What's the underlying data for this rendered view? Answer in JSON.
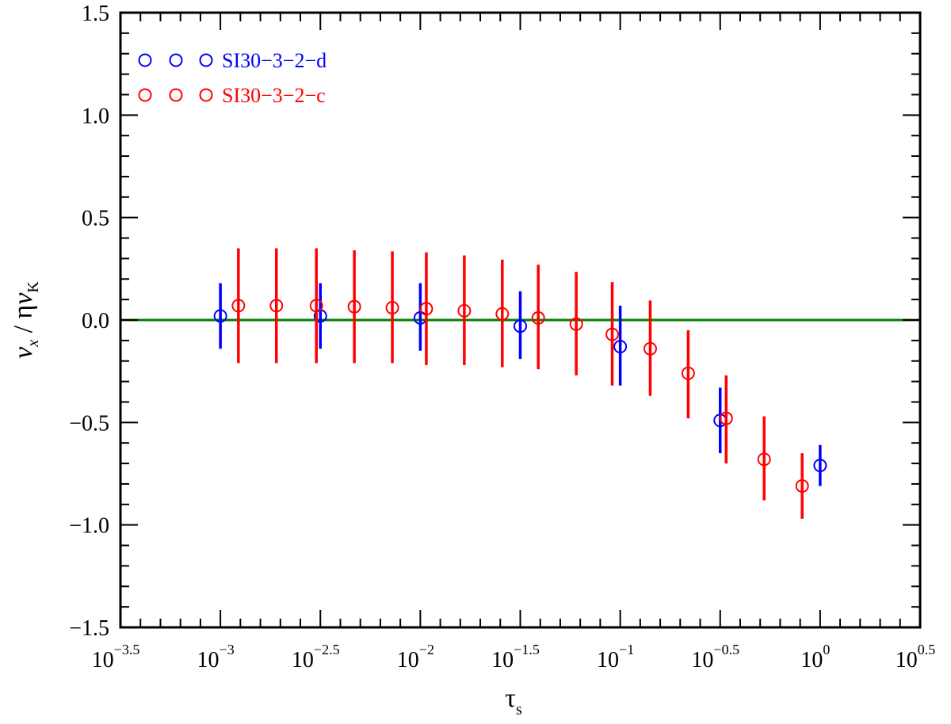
{
  "chart_data": {
    "type": "scatter",
    "title": "",
    "xlabel": "τ",
    "xlabel_sub": "s",
    "ylabel": {
      "v": "v",
      "v_sub": "x",
      "sep": " / η",
      "v2": "v",
      "v2_sub": "K"
    },
    "x_scale": "log10",
    "xlim_log10": [
      -3.5,
      0.5
    ],
    "ylim": [
      -1.5,
      1.5
    ],
    "x_ticks": [
      {
        "base": "10",
        "exp": "−3.5",
        "log10": -3.5
      },
      {
        "base": "10",
        "exp": "−3",
        "log10": -3.0
      },
      {
        "base": "10",
        "exp": "−2.5",
        "log10": -2.5
      },
      {
        "base": "10",
        "exp": "−2",
        "log10": -2.0
      },
      {
        "base": "10",
        "exp": "−1.5",
        "log10": -1.5
      },
      {
        "base": "10",
        "exp": "−1",
        "log10": -1.0
      },
      {
        "base": "10",
        "exp": "−0.5",
        "log10": -0.5
      },
      {
        "base": "10",
        "exp": "0",
        "log10": 0.0
      },
      {
        "base": "10",
        "exp": "0.5",
        "log10": 0.5
      }
    ],
    "y_ticks": [
      {
        "label": "1.5",
        "value": 1.5
      },
      {
        "label": "1.0",
        "value": 1.0
      },
      {
        "label": "0.5",
        "value": 0.5
      },
      {
        "label": "0.0",
        "value": 0.0
      },
      {
        "label": "−0.5",
        "value": -0.5
      },
      {
        "label": "−1.0",
        "value": -1.0
      },
      {
        "label": "−1.5",
        "value": -1.5
      }
    ],
    "reference_line": {
      "y": 0.0,
      "color": "#008000"
    },
    "legend_position": "top-left",
    "series": [
      {
        "name": "SI30−3−2−d",
        "color": "#0000ff",
        "points": [
          {
            "log10_tau": -3.0,
            "y": 0.02,
            "ylo": -0.14,
            "yhi": 0.18
          },
          {
            "log10_tau": -2.5,
            "y": 0.02,
            "ylo": -0.14,
            "yhi": 0.18
          },
          {
            "log10_tau": -2.0,
            "y": 0.01,
            "ylo": -0.15,
            "yhi": 0.18
          },
          {
            "log10_tau": -1.5,
            "y": -0.03,
            "ylo": -0.19,
            "yhi": 0.14
          },
          {
            "log10_tau": -1.0,
            "y": -0.13,
            "ylo": -0.32,
            "yhi": 0.07
          },
          {
            "log10_tau": -0.5,
            "y": -0.49,
            "ylo": -0.65,
            "yhi": -0.33
          },
          {
            "log10_tau": 0.0,
            "y": -0.71,
            "ylo": -0.81,
            "yhi": -0.61
          }
        ]
      },
      {
        "name": "SI30−3−2−c",
        "color": "#ff0000",
        "points": [
          {
            "log10_tau": -2.91,
            "y": 0.07,
            "ylo": -0.21,
            "yhi": 0.35
          },
          {
            "log10_tau": -2.72,
            "y": 0.07,
            "ylo": -0.21,
            "yhi": 0.35
          },
          {
            "log10_tau": -2.52,
            "y": 0.07,
            "ylo": -0.21,
            "yhi": 0.35
          },
          {
            "log10_tau": -2.33,
            "y": 0.065,
            "ylo": -0.21,
            "yhi": 0.34
          },
          {
            "log10_tau": -2.14,
            "y": 0.06,
            "ylo": -0.21,
            "yhi": 0.335
          },
          {
            "log10_tau": -1.97,
            "y": 0.055,
            "ylo": -0.22,
            "yhi": 0.33
          },
          {
            "log10_tau": -1.78,
            "y": 0.045,
            "ylo": -0.22,
            "yhi": 0.315
          },
          {
            "log10_tau": -1.59,
            "y": 0.03,
            "ylo": -0.23,
            "yhi": 0.295
          },
          {
            "log10_tau": -1.41,
            "y": 0.01,
            "ylo": -0.24,
            "yhi": 0.27
          },
          {
            "log10_tau": -1.22,
            "y": -0.02,
            "ylo": -0.27,
            "yhi": 0.235
          },
          {
            "log10_tau": -1.04,
            "y": -0.07,
            "ylo": -0.32,
            "yhi": 0.185
          },
          {
            "log10_tau": -0.85,
            "y": -0.14,
            "ylo": -0.37,
            "yhi": 0.095
          },
          {
            "log10_tau": -0.66,
            "y": -0.26,
            "ylo": -0.48,
            "yhi": -0.05
          },
          {
            "log10_tau": -0.47,
            "y": -0.48,
            "ylo": -0.7,
            "yhi": -0.27
          },
          {
            "log10_tau": -0.28,
            "y": -0.68,
            "ylo": -0.88,
            "yhi": -0.47
          },
          {
            "log10_tau": -0.09,
            "y": -0.81,
            "ylo": -0.97,
            "yhi": -0.65
          }
        ]
      }
    ]
  }
}
